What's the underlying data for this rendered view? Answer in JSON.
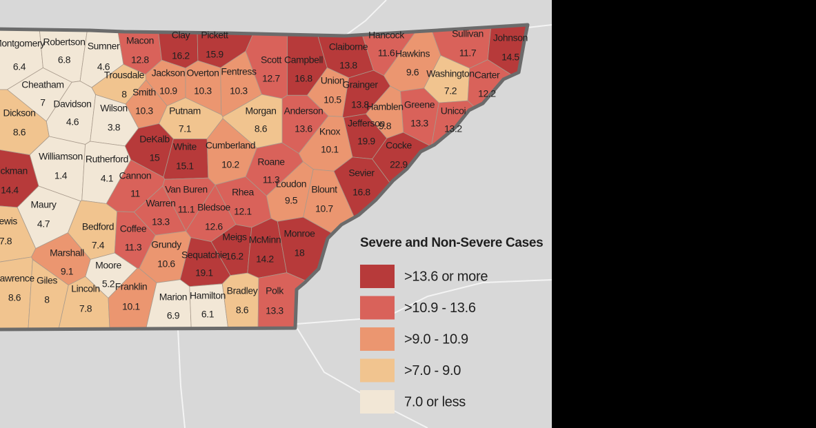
{
  "map": {
    "counties": [
      {
        "name": "Montgomery",
        "value": 6.4,
        "color": "#f2e7d6"
      },
      {
        "name": "Robertson",
        "value": 6.8,
        "color": "#f2e7d6"
      },
      {
        "name": "Sumner",
        "value": 4.6,
        "color": "#f2e7d6"
      },
      {
        "name": "Macon",
        "value": 12.8,
        "color": "#d9625a"
      },
      {
        "name": "Clay",
        "value": 16.2,
        "color": "#b73a3a"
      },
      {
        "name": "Pickett",
        "value": 15.9,
        "color": "#b73a3a"
      },
      {
        "name": "Trousdale",
        "value": 8,
        "color": "#f1c48f"
      },
      {
        "name": "Jackson",
        "value": 10.9,
        "color": "#eb9670"
      },
      {
        "name": "Overton",
        "value": 10.3,
        "color": "#eb9670"
      },
      {
        "name": "Fentress",
        "value": 10.3,
        "color": "#eb9670"
      },
      {
        "name": "Scott",
        "value": 12.7,
        "color": "#d9625a"
      },
      {
        "name": "Campbell",
        "value": 16.8,
        "color": "#b73a3a"
      },
      {
        "name": "Claiborne",
        "value": 13.8,
        "color": "#b73a3a"
      },
      {
        "name": "Hancock",
        "value": 11.6,
        "color": "#d9625a"
      },
      {
        "name": "Sullivan",
        "value": 11.7,
        "color": "#d9625a"
      },
      {
        "name": "Johnson",
        "value": 14.5,
        "color": "#b73a3a"
      },
      {
        "name": "Hawkins",
        "value": 9.6,
        "color": "#eb9670"
      },
      {
        "name": "Washington",
        "value": 7.2,
        "color": "#f1c48f"
      },
      {
        "name": "Carter",
        "value": 12.2,
        "color": "#d9625a"
      },
      {
        "name": "Unicoi",
        "value": 13.2,
        "color": "#d9625a"
      },
      {
        "name": "Greene",
        "value": 13.3,
        "color": "#d9625a"
      },
      {
        "name": "Hamblen",
        "value": 9.8,
        "color": "#eb9670"
      },
      {
        "name": "Cocke",
        "value": 22.9,
        "color": "#b73a3a"
      },
      {
        "name": "Jefferson",
        "value": 19.9,
        "color": "#b73a3a"
      },
      {
        "name": "Grainger",
        "value": 13.8,
        "color": "#b73a3a"
      },
      {
        "name": "Union",
        "value": 10.5,
        "color": "#eb9670"
      },
      {
        "name": "Anderson",
        "value": 13.6,
        "color": "#d9625a"
      },
      {
        "name": "Knox",
        "value": 10.1,
        "color": "#eb9670"
      },
      {
        "name": "Sevier",
        "value": 16.8,
        "color": "#b73a3a"
      },
      {
        "name": "Morgan",
        "value": 8.6,
        "color": "#f1c48f"
      },
      {
        "name": "Cheatham",
        "value": 7,
        "color": "#f2e7d6"
      },
      {
        "name": "Davidson",
        "value": 4.6,
        "color": "#f2e7d6"
      },
      {
        "name": "Wilson",
        "value": 3.8,
        "color": "#f2e7d6"
      },
      {
        "name": "Smith",
        "value": 10.3,
        "color": "#eb9670"
      },
      {
        "name": "Putnam",
        "value": 7.1,
        "color": "#f1c48f"
      },
      {
        "name": "Dickson",
        "value": 8.6,
        "color": "#f1c48f"
      },
      {
        "name": "DeKalb",
        "value": 15,
        "color": "#b73a3a"
      },
      {
        "name": "White",
        "value": 15.1,
        "color": "#b73a3a"
      },
      {
        "name": "Cumberland",
        "value": 10.2,
        "color": "#eb9670"
      },
      {
        "name": "Roane",
        "value": 11.3,
        "color": "#d9625a"
      },
      {
        "name": "Loudon",
        "value": 9.5,
        "color": "#eb9670"
      },
      {
        "name": "Blount",
        "value": 10.7,
        "color": "#eb9670"
      },
      {
        "name": "Williamson",
        "value": 1.4,
        "color": "#f2e7d6"
      },
      {
        "name": "Rutherford",
        "value": 4.1,
        "color": "#f2e7d6"
      },
      {
        "name": "Cannon",
        "value": 11,
        "color": "#d9625a"
      },
      {
        "name": "Hickman",
        "value": 14.4,
        "color": "#b73a3a"
      },
      {
        "name": "Van Buren",
        "value": 11.1,
        "color": "#d9625a"
      },
      {
        "name": "Warren",
        "value": 13.3,
        "color": "#d9625a"
      },
      {
        "name": "Bledsoe",
        "value": 12.6,
        "color": "#d9625a"
      },
      {
        "name": "Rhea",
        "value": 12.1,
        "color": "#d9625a"
      },
      {
        "name": "Maury",
        "value": 4.7,
        "color": "#f2e7d6"
      },
      {
        "name": "Lewis",
        "value": 7.8,
        "color": "#f1c48f"
      },
      {
        "name": "Bedford",
        "value": 7.4,
        "color": "#f1c48f"
      },
      {
        "name": "Coffee",
        "value": 11.3,
        "color": "#d9625a"
      },
      {
        "name": "Marshall",
        "value": 9.1,
        "color": "#eb9670"
      },
      {
        "name": "Moore",
        "value": 5.2,
        "color": "#f2e7d6"
      },
      {
        "name": "Grundy",
        "value": 10.6,
        "color": "#eb9670"
      },
      {
        "name": "Sequatchie",
        "value": 19.1,
        "color": "#b73a3a"
      },
      {
        "name": "Meigs",
        "value": 16.2,
        "color": "#b73a3a"
      },
      {
        "name": "McMinn",
        "value": 14.2,
        "color": "#b73a3a"
      },
      {
        "name": "Monroe",
        "value": 18,
        "color": "#b73a3a"
      },
      {
        "name": "Lawrence",
        "value": 8.6,
        "color": "#f1c48f"
      },
      {
        "name": "Giles",
        "value": 8,
        "color": "#f1c48f"
      },
      {
        "name": "Lincoln",
        "value": 7.8,
        "color": "#f1c48f"
      },
      {
        "name": "Franklin",
        "value": 10.1,
        "color": "#eb9670"
      },
      {
        "name": "Marion",
        "value": 6.9,
        "color": "#f2e7d6"
      },
      {
        "name": "Hamilton",
        "value": 6.1,
        "color": "#f2e7d6"
      },
      {
        "name": "Bradley",
        "value": 8.6,
        "color": "#f1c48f"
      },
      {
        "name": "Polk",
        "value": 13.3,
        "color": "#d9625a"
      }
    ],
    "legend": {
      "title": "Severe and Non-Severe Cases",
      "items": [
        {
          "label": ">13.6 or more",
          "color": "#b73a3a"
        },
        {
          "label": ">10.9 - 13.6",
          "color": "#d9625a"
        },
        {
          "label": ">9.0 - 10.9",
          "color": "#eb9670"
        },
        {
          "label": ">7.0 - 9.0",
          "color": "#f1c48f"
        },
        {
          "label": "7.0 or less",
          "color": "#f2e7d6"
        }
      ]
    }
  }
}
